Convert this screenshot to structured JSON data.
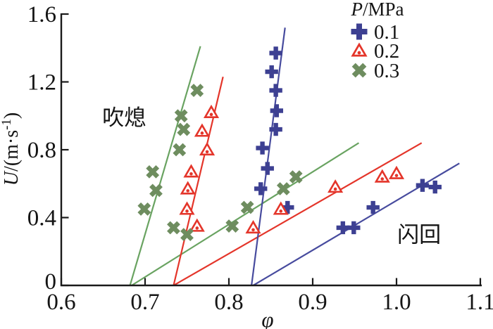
{
  "chart_data": {
    "type": "scatter",
    "xlabel": "φ",
    "ylabel": {
      "full": "U/(m·s⁻¹)",
      "italic": "U",
      "pre": "/(m·s",
      "sup": "-1",
      "post": ")"
    },
    "xlim": [
      0.6,
      1.1
    ],
    "ylim": [
      0,
      1.6
    ],
    "xticks": [
      "0.6",
      "0.7",
      "0.8",
      "0.9",
      "1.0",
      "1.1"
    ],
    "yticks": [
      "0",
      "0.4",
      "0.8",
      "1.2",
      "1.6"
    ],
    "grid": false,
    "legend": {
      "position": "top-right-inside",
      "title": {
        "full": "P/MPa",
        "italic": "P",
        "rest": "/MPa"
      },
      "entries": [
        {
          "label": "0.1",
          "marker": "plus",
          "color": "#3d4092"
        },
        {
          "label": "0.2",
          "marker": "triangle",
          "color": "#e4352a"
        },
        {
          "label": "0.3",
          "marker": "x",
          "color": "#6e8d5f"
        }
      ]
    },
    "annotations": [
      {
        "text": "吹熄",
        "x": 0.675,
        "y": 0.99
      },
      {
        "text": "闪回",
        "x": 1.027,
        "y": 0.3
      }
    ],
    "series": [
      {
        "pressure": "0.1",
        "marker": "plus",
        "color": "#3d4092",
        "points": [
          [
            0.856,
            1.37
          ],
          [
            0.851,
            1.26
          ],
          [
            0.856,
            1.15
          ],
          [
            0.857,
            1.03
          ],
          [
            0.856,
            0.92
          ],
          [
            0.84,
            0.81
          ],
          [
            0.846,
            0.69
          ],
          [
            0.838,
            0.57
          ],
          [
            0.87,
            0.46
          ],
          [
            0.936,
            0.34
          ],
          [
            0.949,
            0.34
          ],
          [
            0.972,
            0.46
          ],
          [
            1.031,
            0.59
          ],
          [
            1.046,
            0.58
          ]
        ]
      },
      {
        "pressure": "0.2",
        "marker": "triangle",
        "color": "#e4352a",
        "points": [
          [
            0.779,
            1.02
          ],
          [
            0.768,
            0.91
          ],
          [
            0.774,
            0.8
          ],
          [
            0.755,
            0.67
          ],
          [
            0.751,
            0.57
          ],
          [
            0.75,
            0.45
          ],
          [
            0.762,
            0.35
          ],
          [
            0.829,
            0.34
          ],
          [
            0.862,
            0.45
          ],
          [
            0.927,
            0.58
          ],
          [
            0.983,
            0.64
          ],
          [
            1.0,
            0.66
          ]
        ]
      },
      {
        "pressure": "0.3",
        "marker": "x",
        "color": "#6e8d5f",
        "points": [
          [
            0.762,
            1.15
          ],
          [
            0.743,
            1.0
          ],
          [
            0.746,
            0.92
          ],
          [
            0.741,
            0.8
          ],
          [
            0.709,
            0.67
          ],
          [
            0.713,
            0.56
          ],
          [
            0.699,
            0.45
          ],
          [
            0.734,
            0.34
          ],
          [
            0.75,
            0.3
          ],
          [
            0.804,
            0.35
          ],
          [
            0.822,
            0.46
          ],
          [
            0.865,
            0.57
          ],
          [
            0.88,
            0.64
          ]
        ]
      }
    ],
    "boundary_lines": [
      {
        "group": "0.3",
        "color": "#69a361",
        "points": [
          [
            0.682,
            0
          ],
          [
            0.766,
            1.41
          ]
        ]
      },
      {
        "group": "0.3",
        "color": "#69a361",
        "points": [
          [
            0.684,
            0
          ],
          [
            0.955,
            0.84
          ]
        ]
      },
      {
        "group": "0.2",
        "color": "#e4352a",
        "points": [
          [
            0.734,
            0
          ],
          [
            0.793,
            1.23
          ]
        ]
      },
      {
        "group": "0.2",
        "color": "#e4352a",
        "points": [
          [
            0.734,
            0
          ],
          [
            1.03,
            0.84
          ]
        ]
      },
      {
        "group": "0.1",
        "color": "#474b9e",
        "points": [
          [
            0.827,
            0
          ],
          [
            0.867,
            1.52
          ]
        ]
      },
      {
        "group": "0.1",
        "color": "#474b9e",
        "points": [
          [
            0.829,
            0
          ],
          [
            1.075,
            0.72
          ]
        ]
      }
    ],
    "axis_color": "#1a1a1a"
  }
}
